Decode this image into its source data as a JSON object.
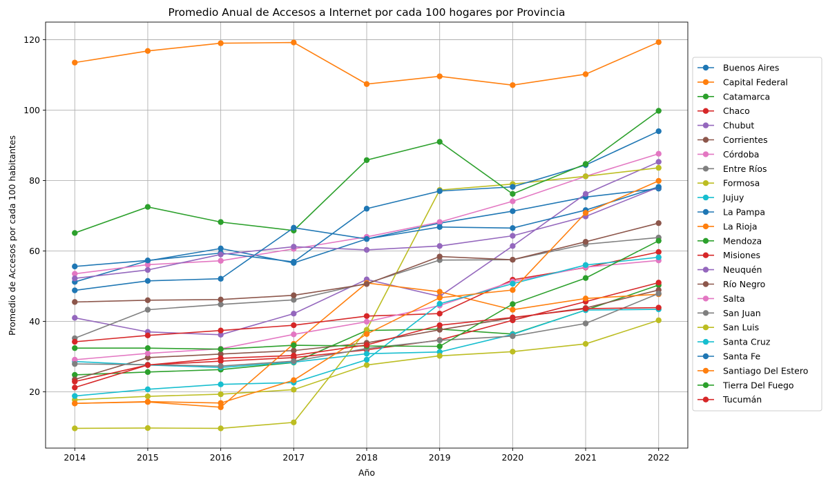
{
  "chart_data": {
    "type": "line",
    "title": "Promedio Anual de Accesos a Internet por cada 100 hogares por Provincia",
    "xlabel": "Año",
    "ylabel": "Promedio de Accesos por cada 100 habitantes",
    "x": [
      2014,
      2015,
      2016,
      2017,
      2018,
      2019,
      2020,
      2021,
      2022
    ],
    "xlim": [
      2013.6,
      2022.4
    ],
    "ylim": [
      4,
      125
    ],
    "yticks": [
      20,
      40,
      60,
      80,
      100,
      120
    ],
    "grid": true,
    "legend_position": "right",
    "series": [
      {
        "name": "Buenos Aires",
        "color": "#1f77b4",
        "values": [
          51.2,
          57.2,
          60.7,
          56.6,
          63.4,
          67.9,
          71.3,
          75.3,
          77.7
        ]
      },
      {
        "name": "Capital Federal",
        "color": "#ff7f0e",
        "values": [
          113.5,
          116.8,
          119.0,
          119.2,
          107.4,
          109.6,
          107.1,
          110.2,
          119.3
        ]
      },
      {
        "name": "Catamarca",
        "color": "#2ca02c",
        "values": [
          24.8,
          25.6,
          26.3,
          28.3,
          37.4,
          37.8,
          36.4,
          43.2,
          50.3
        ]
      },
      {
        "name": "Chaco",
        "color": "#d62728",
        "values": [
          21.2,
          27.6,
          28.7,
          29.7,
          31.9,
          34.7,
          40.3,
          45.6,
          51.0
        ]
      },
      {
        "name": "Chubut",
        "color": "#9467bd",
        "values": [
          41.0,
          37.0,
          36.2,
          42.2,
          51.9,
          47.1,
          61.4,
          76.2,
          85.3
        ]
      },
      {
        "name": "Corrientes",
        "color": "#8c564b",
        "values": [
          23.5,
          29.7,
          30.7,
          31.7,
          33.9,
          37.6,
          41.0,
          43.8,
          48.9
        ]
      },
      {
        "name": "Córdoba",
        "color": "#e377c2",
        "values": [
          53.5,
          56.1,
          57.2,
          60.6,
          64.0,
          68.2,
          74.1,
          81.2,
          87.6
        ]
      },
      {
        "name": "Entre Ríos",
        "color": "#7f7f7f",
        "values": [
          35.2,
          43.3,
          44.8,
          46.1,
          50.8,
          57.4,
          57.5,
          61.9,
          63.8
        ]
      },
      {
        "name": "Formosa",
        "color": "#bcbd22",
        "values": [
          9.6,
          9.7,
          9.6,
          11.3,
          37.6,
          77.3,
          79.0,
          81.2,
          83.6
        ]
      },
      {
        "name": "Jujuy",
        "color": "#17becf",
        "values": [
          28.6,
          27.6,
          26.9,
          28.4,
          30.8,
          31.3,
          36.3,
          43.2,
          43.4
        ]
      },
      {
        "name": "La Pampa",
        "color": "#1f77b4",
        "values": [
          55.6,
          57.3,
          59.4,
          56.9,
          72.0,
          77.0,
          78.2,
          84.4,
          94.0
        ]
      },
      {
        "name": "La Rioja",
        "color": "#ff7f0e",
        "values": [
          16.7,
          17.1,
          15.6,
          33.6,
          50.9,
          48.4,
          43.3,
          46.5,
          47.7
        ]
      },
      {
        "name": "Mendoza",
        "color": "#2ca02c",
        "values": [
          65.1,
          72.5,
          68.2,
          65.8,
          85.8,
          91.0,
          76.2,
          84.7,
          99.8
        ]
      },
      {
        "name": "Misiones",
        "color": "#d62728",
        "values": [
          34.2,
          36.0,
          37.4,
          38.9,
          41.5,
          42.2,
          51.8,
          55.3,
          59.7
        ]
      },
      {
        "name": "Neuquén",
        "color": "#9467bd",
        "values": [
          52.2,
          54.6,
          59.0,
          61.2,
          60.3,
          61.4,
          64.3,
          69.8,
          78.1
        ]
      },
      {
        "name": "Río Negro",
        "color": "#8c564b",
        "values": [
          45.5,
          46.0,
          46.2,
          47.4,
          50.6,
          58.4,
          57.5,
          62.6,
          67.9
        ]
      },
      {
        "name": "Salta",
        "color": "#e377c2",
        "values": [
          29.1,
          30.9,
          32.2,
          36.3,
          39.9,
          44.5,
          51.3,
          55.4,
          57.3
        ]
      },
      {
        "name": "San Juan",
        "color": "#7f7f7f",
        "values": [
          27.9,
          27.7,
          27.3,
          28.7,
          32.3,
          34.6,
          35.8,
          39.4,
          47.9
        ]
      },
      {
        "name": "San Luis",
        "color": "#bcbd22",
        "values": [
          17.7,
          18.7,
          19.3,
          20.6,
          27.6,
          30.2,
          31.4,
          33.6,
          40.3
        ]
      },
      {
        "name": "Santa Cruz",
        "color": "#17becf",
        "values": [
          18.8,
          20.7,
          22.1,
          22.6,
          29.1,
          45.0,
          50.7,
          56.0,
          58.2
        ]
      },
      {
        "name": "Santa Fe",
        "color": "#1f77b4",
        "values": [
          48.8,
          51.5,
          52.1,
          66.6,
          63.4,
          66.8,
          66.5,
          71.6,
          78.2
        ]
      },
      {
        "name": "Santiago Del Estero",
        "color": "#ff7f0e",
        "values": [
          16.7,
          17.2,
          16.8,
          23.3,
          36.4,
          46.7,
          48.9,
          70.8,
          79.9
        ]
      },
      {
        "name": "Tierra Del Fuego",
        "color": "#2ca02c",
        "values": [
          32.4,
          32.4,
          32.1,
          33.2,
          33.0,
          32.9,
          44.9,
          52.3,
          62.9
        ]
      },
      {
        "name": "Tucumán",
        "color": "#d62728",
        "values": [
          22.9,
          27.6,
          29.5,
          30.3,
          33.3,
          38.9,
          41.1,
          43.6,
          43.9
        ]
      }
    ]
  }
}
